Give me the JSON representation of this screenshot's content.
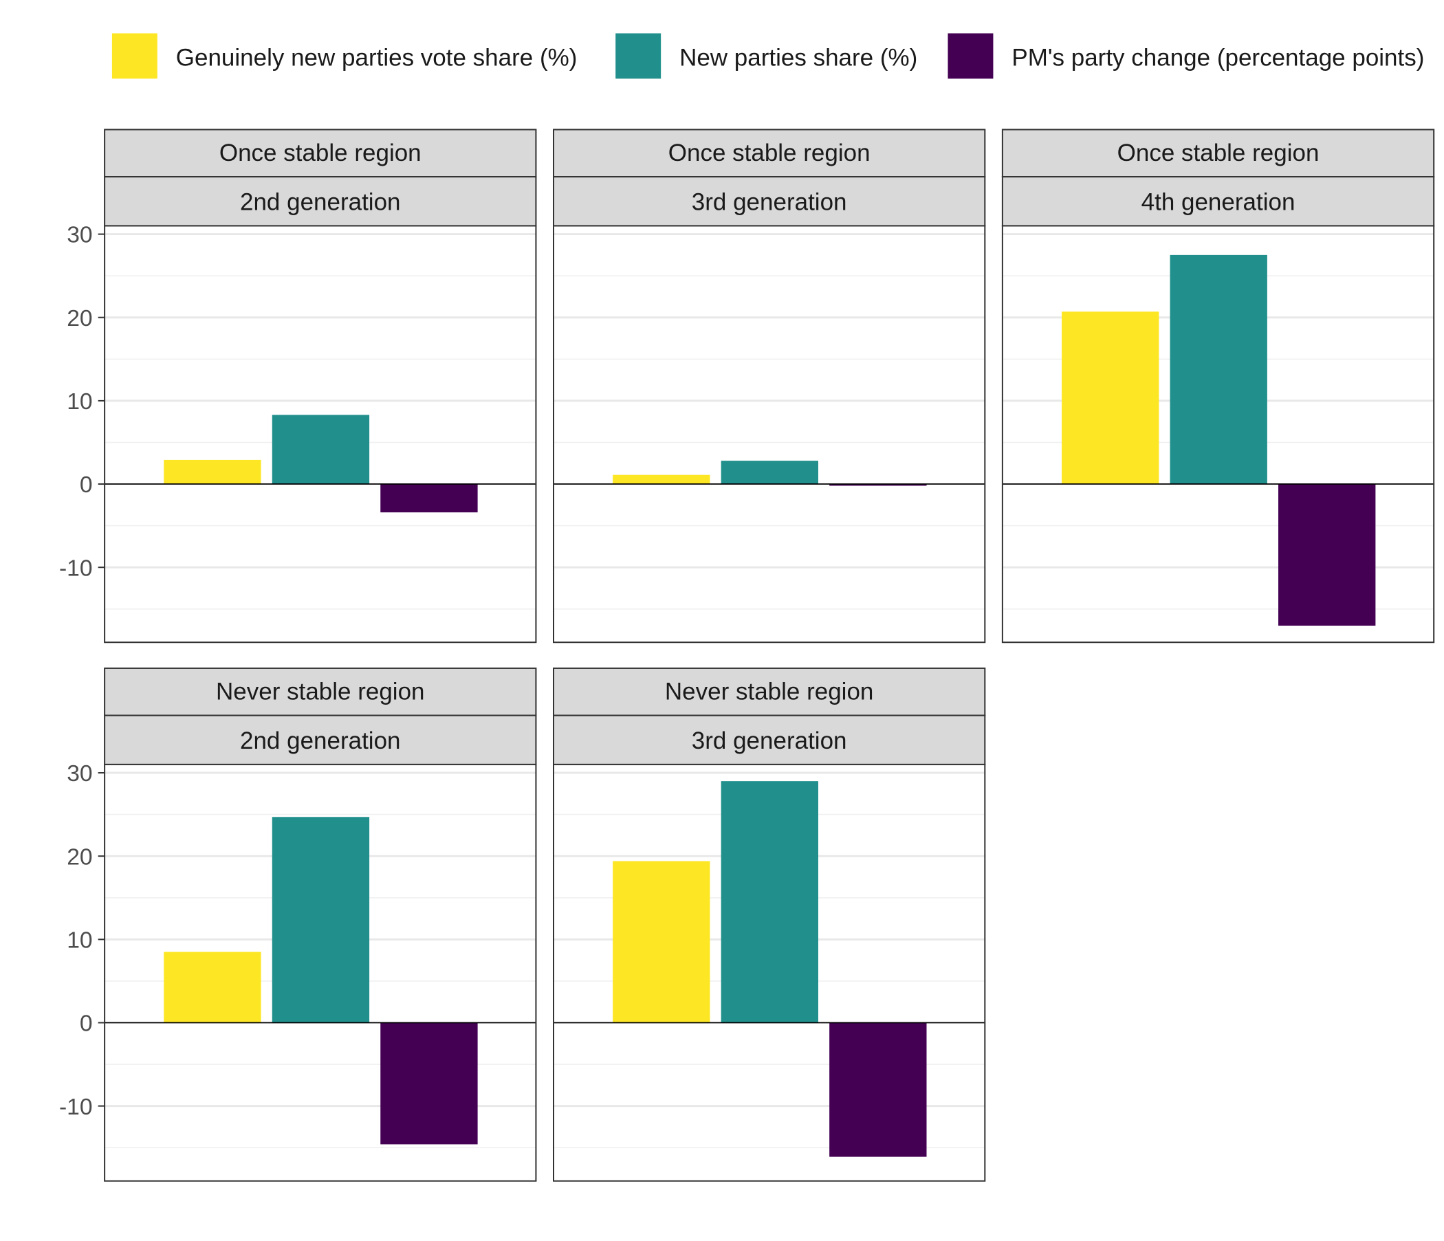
{
  "chart_data": {
    "type": "bar",
    "legend_position": "top",
    "series": [
      {
        "name": "Genuinely new parties vote share (%)",
        "color": "#FDE725"
      },
      {
        "name": "New parties share (%)",
        "color": "#21908C"
      },
      {
        "name": "PM's party change (percentage points)",
        "color": "#440154"
      }
    ],
    "ylim": [
      -19,
      31
    ],
    "y_ticks": [
      30,
      20,
      10,
      0,
      -10
    ],
    "grid": true,
    "panels": [
      {
        "strip_top": "Once stable region",
        "strip_bottom": "2nd generation",
        "values": [
          2.9,
          8.3,
          -3.4
        ]
      },
      {
        "strip_top": "Once stable region",
        "strip_bottom": "3rd generation",
        "values": [
          1.1,
          2.8,
          -0.2
        ]
      },
      {
        "strip_top": "Once stable region",
        "strip_bottom": "4th generation",
        "values": [
          20.7,
          27.5,
          -17.0
        ]
      },
      {
        "strip_top": "Never stable region",
        "strip_bottom": "2nd generation",
        "values": [
          8.5,
          24.7,
          -14.6
        ]
      },
      {
        "strip_top": "Never stable region",
        "strip_bottom": "3rd generation",
        "values": [
          19.4,
          29.0,
          -16.1
        ]
      }
    ]
  }
}
